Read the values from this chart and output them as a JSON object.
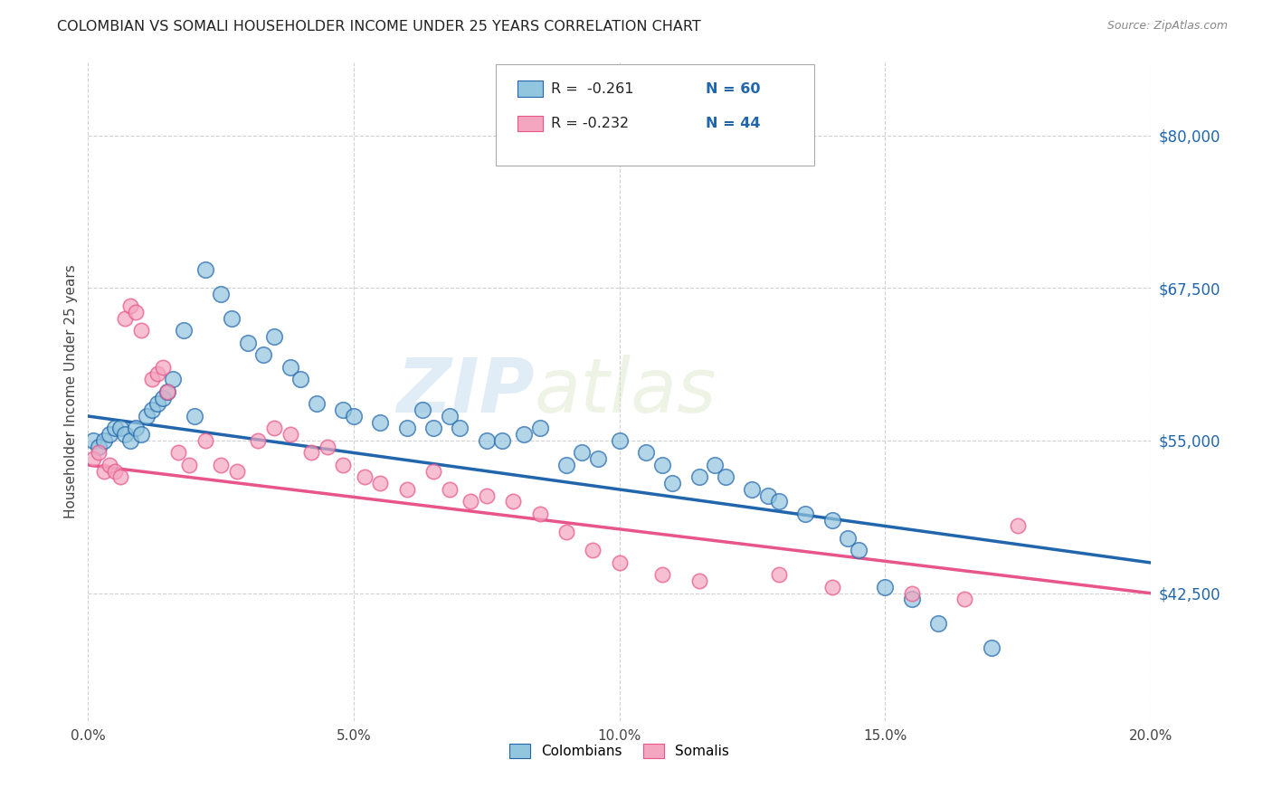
{
  "title": "COLOMBIAN VS SOMALI HOUSEHOLDER INCOME UNDER 25 YEARS CORRELATION CHART",
  "source": "Source: ZipAtlas.com",
  "ylabel": "Householder Income Under 25 years",
  "xlim": [
    0.0,
    0.2
  ],
  "ylim": [
    32000,
    86000
  ],
  "xtick_labels": [
    "0.0%",
    "5.0%",
    "10.0%",
    "15.0%",
    "20.0%"
  ],
  "xtick_vals": [
    0.0,
    0.05,
    0.1,
    0.15,
    0.2
  ],
  "ytick_vals": [
    42500,
    55000,
    67500,
    80000
  ],
  "ytick_labels": [
    "$42,500",
    "$55,000",
    "$67,500",
    "$80,000"
  ],
  "colombian_color": "#92c5de",
  "somali_color": "#f4a6c0",
  "regression_colombian_color": "#2166ac",
  "regression_somali_color": "#e8558a",
  "watermark_zip": "ZIP",
  "watermark_atlas": "atlas",
  "colombian_x": [
    0.001,
    0.002,
    0.003,
    0.004,
    0.005,
    0.006,
    0.007,
    0.008,
    0.009,
    0.01,
    0.011,
    0.012,
    0.013,
    0.014,
    0.015,
    0.016,
    0.018,
    0.02,
    0.022,
    0.025,
    0.027,
    0.03,
    0.033,
    0.035,
    0.038,
    0.04,
    0.043,
    0.048,
    0.05,
    0.055,
    0.06,
    0.063,
    0.065,
    0.068,
    0.07,
    0.075,
    0.078,
    0.082,
    0.085,
    0.09,
    0.093,
    0.096,
    0.1,
    0.105,
    0.108,
    0.11,
    0.115,
    0.118,
    0.12,
    0.125,
    0.128,
    0.13,
    0.135,
    0.14,
    0.143,
    0.145,
    0.15,
    0.155,
    0.16,
    0.17
  ],
  "colombian_y": [
    55000,
    54500,
    55000,
    55500,
    56000,
    56000,
    55500,
    55000,
    56000,
    55500,
    57000,
    57500,
    58000,
    58500,
    59000,
    60000,
    64000,
    57000,
    69000,
    67000,
    65000,
    63000,
    62000,
    63500,
    61000,
    60000,
    58000,
    57500,
    57000,
    56500,
    56000,
    57500,
    56000,
    57000,
    56000,
    55000,
    55000,
    55500,
    56000,
    53000,
    54000,
    53500,
    55000,
    54000,
    53000,
    51500,
    52000,
    53000,
    52000,
    51000,
    50500,
    50000,
    49000,
    48500,
    47000,
    46000,
    43000,
    42000,
    40000,
    38000
  ],
  "somali_x": [
    0.001,
    0.002,
    0.003,
    0.004,
    0.005,
    0.006,
    0.007,
    0.008,
    0.009,
    0.01,
    0.012,
    0.013,
    0.014,
    0.015,
    0.017,
    0.019,
    0.022,
    0.025,
    0.028,
    0.032,
    0.035,
    0.038,
    0.042,
    0.045,
    0.048,
    0.052,
    0.055,
    0.06,
    0.065,
    0.068,
    0.072,
    0.075,
    0.08,
    0.085,
    0.09,
    0.095,
    0.1,
    0.108,
    0.115,
    0.13,
    0.14,
    0.155,
    0.165,
    0.175
  ],
  "somali_y": [
    53500,
    54000,
    52500,
    53000,
    52500,
    52000,
    65000,
    66000,
    65500,
    64000,
    60000,
    60500,
    61000,
    59000,
    54000,
    53000,
    55000,
    53000,
    52500,
    55000,
    56000,
    55500,
    54000,
    54500,
    53000,
    52000,
    51500,
    51000,
    52500,
    51000,
    50000,
    50500,
    50000,
    49000,
    47500,
    46000,
    45000,
    44000,
    43500,
    44000,
    43000,
    42500,
    42000,
    48000
  ]
}
